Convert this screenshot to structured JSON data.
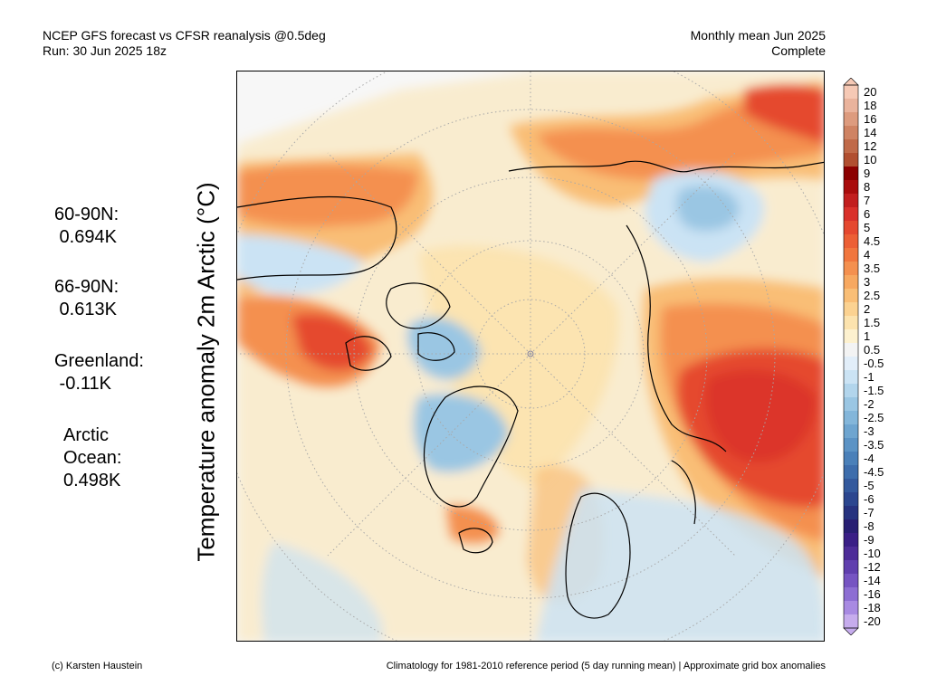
{
  "header": {
    "line1": "NCEP GFS forecast vs CFSR reanalysis @0.5deg",
    "line2": "Run: 30 Jun 2025 18z",
    "right1": "Monthly mean Jun 2025",
    "right2": "Complete"
  },
  "stats": [
    {
      "name": "60-90N:",
      "value": " 0.694K"
    },
    {
      "name": "66-90N:",
      "value": " 0.613K"
    },
    {
      "name": "Greenland:",
      "value": " -0.11K"
    },
    {
      "name": "Arctic",
      "name2": "Ocean:",
      "value": "0.498K"
    }
  ],
  "ylabel": "Temperature anomaly 2m Arctic (°C)",
  "colorbar": {
    "labels": [
      "20",
      "18",
      "16",
      "14",
      "12",
      "10",
      "9",
      "8",
      "7",
      "6",
      "5",
      "4.5",
      "4",
      "3.5",
      "3",
      "2.5",
      "2",
      "1.5",
      "1",
      "0.5",
      "-0.5",
      "-1",
      "-1.5",
      "-2",
      "-2.5",
      "-3",
      "-3.5",
      "-4",
      "-4.5",
      "-5",
      "-6",
      "-7",
      "-8",
      "-9",
      "-10",
      "-12",
      "-14",
      "-16",
      "-18",
      "-20"
    ],
    "colors": [
      "#f6c9b5",
      "#eab39c",
      "#dd9b7e",
      "#cf8363",
      "#c06a49",
      "#b14f30",
      "#8c0000",
      "#a90c0c",
      "#c21e1e",
      "#d9302a",
      "#e5482f",
      "#ec5f35",
      "#f1763e",
      "#f4904f",
      "#f7a860",
      "#f9be76",
      "#fbd291",
      "#fce3ae",
      "#fdf1cf",
      "#f3f3f3",
      "#e2eef9",
      "#cbe3f4",
      "#b2d5ec",
      "#9ac6e3",
      "#83b6da",
      "#6ea5d0",
      "#5b93c5",
      "#4a80b9",
      "#3d6dac",
      "#33599d",
      "#2b468f",
      "#26327f",
      "#281f73",
      "#3a1f86",
      "#4d2c98",
      "#603fae",
      "#7654c2",
      "#8d6ed3",
      "#a88ae2",
      "#c6aced"
    ]
  },
  "map": {
    "colors": {
      "ocean_neutral": "#f7f7f7",
      "warm_light": "#fce3ae",
      "warm": "#f9be76",
      "warm_mid": "#f4904f",
      "hot": "#e5482f",
      "hotter": "#d9302a",
      "cool_light": "#cbe3f4",
      "cool": "#9ac6e3",
      "cool_mid": "#6ea5d0",
      "coast": "#000000",
      "grid": "#a8a8a8"
    }
  },
  "footer": {
    "left": "(c) Karsten Haustein",
    "right": "Climatology for 1981-2010 reference period (5 day running mean) | Approximate grid box anomalies"
  }
}
